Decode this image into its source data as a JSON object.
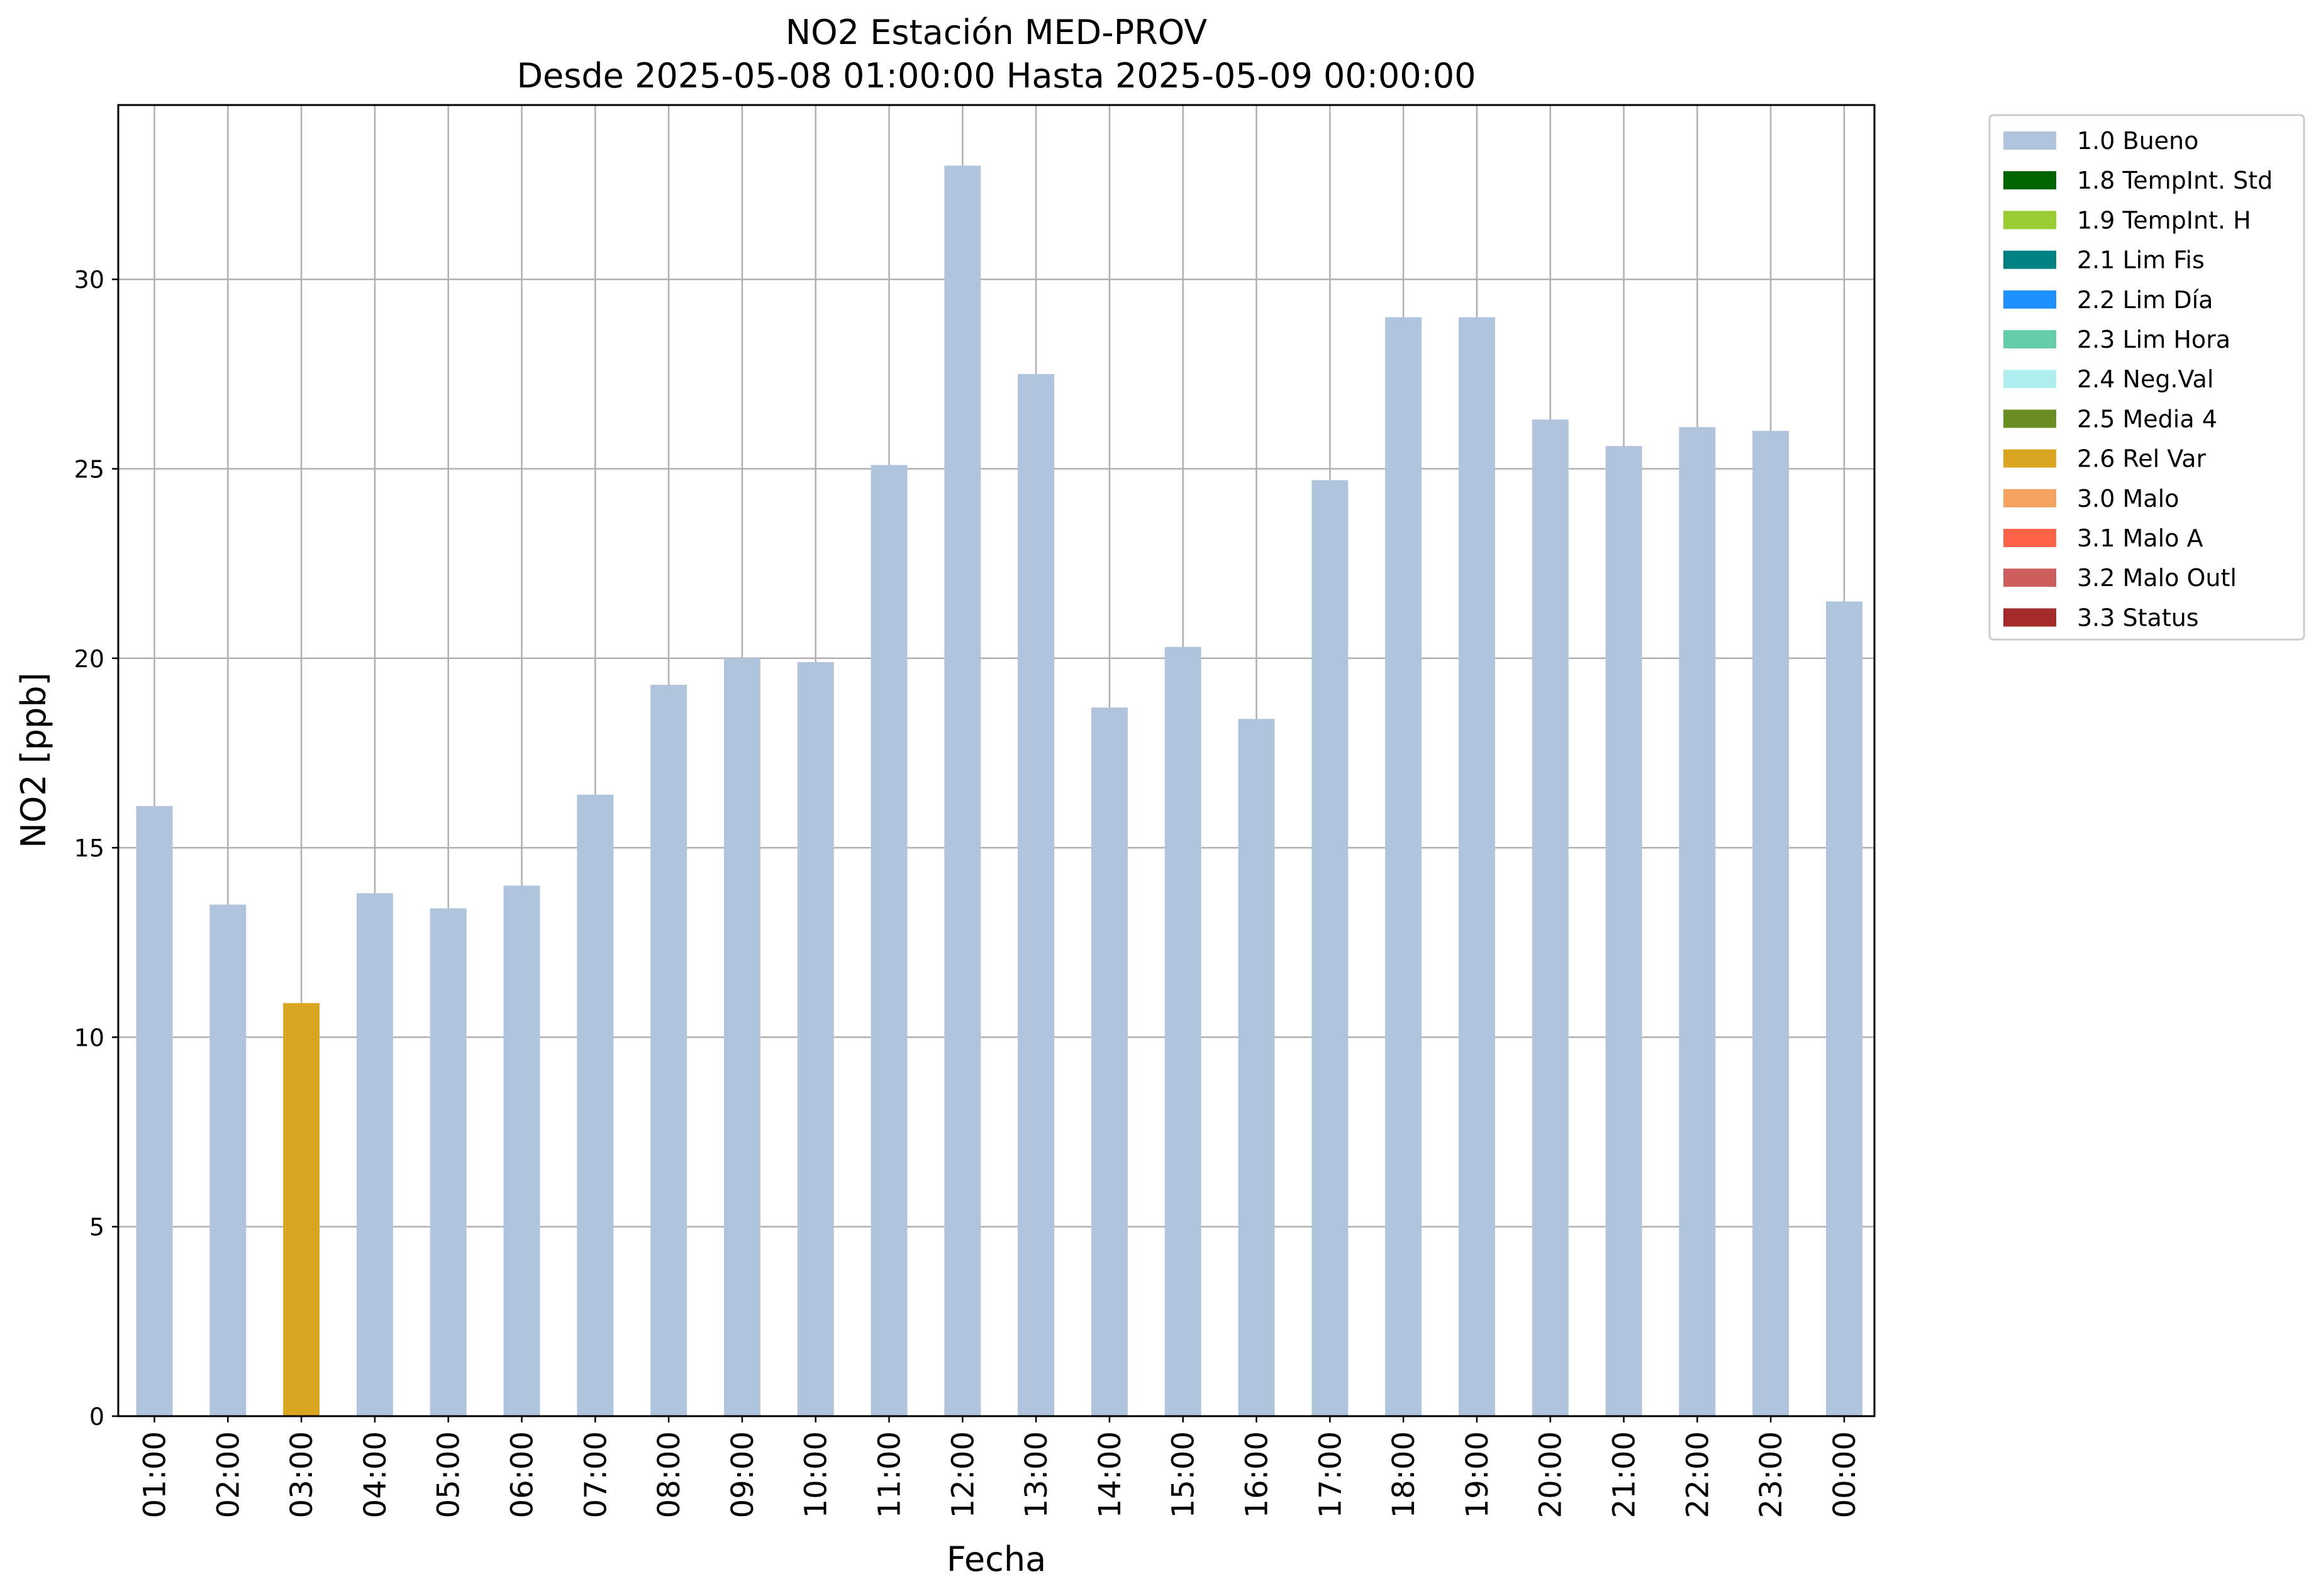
{
  "chart_data": {
    "type": "bar",
    "title": "NO2 Estación MED-PROV",
    "subtitle": "Desde 2025-05-08 01:00:00 Hasta 2025-05-09 00:00:00",
    "xlabel": "Fecha",
    "ylabel": "NO2 [ppb]",
    "ylim": [
      0,
      34.6
    ],
    "yticks": [
      0,
      5,
      10,
      15,
      20,
      25,
      30
    ],
    "grid": true,
    "legend_position": "outside top-right",
    "categories": [
      "01:00",
      "02:00",
      "03:00",
      "04:00",
      "05:00",
      "06:00",
      "07:00",
      "08:00",
      "09:00",
      "10:00",
      "11:00",
      "12:00",
      "13:00",
      "14:00",
      "15:00",
      "16:00",
      "17:00",
      "18:00",
      "19:00",
      "20:00",
      "21:00",
      "22:00",
      "23:00",
      "00:00"
    ],
    "values": [
      16.1,
      13.5,
      10.9,
      13.8,
      13.4,
      14.0,
      16.4,
      19.3,
      20.0,
      19.9,
      25.1,
      33.0,
      27.5,
      18.7,
      20.3,
      18.4,
      24.7,
      29.0,
      29.0,
      26.3,
      25.6,
      26.1,
      26.0,
      21.5
    ],
    "bar_flags": [
      "1.0 Bueno",
      "1.0 Bueno",
      "2.6 Rel Var",
      "1.0 Bueno",
      "1.0 Bueno",
      "1.0 Bueno",
      "1.0 Bueno",
      "1.0 Bueno",
      "1.0 Bueno",
      "1.0 Bueno",
      "1.0 Bueno",
      "1.0 Bueno",
      "1.0 Bueno",
      "1.0 Bueno",
      "1.0 Bueno",
      "1.0 Bueno",
      "1.0 Bueno",
      "1.0 Bueno",
      "1.0 Bueno",
      "1.0 Bueno",
      "1.0 Bueno",
      "1.0 Bueno",
      "1.0 Bueno",
      "1.0 Bueno"
    ],
    "legend": [
      {
        "label": "1.0 Bueno",
        "color": "#b0c4de"
      },
      {
        "label": "1.8 TempInt. Std",
        "color": "#006400"
      },
      {
        "label": "1.9 TempInt. H",
        "color": "#9acd32"
      },
      {
        "label": "2.1 Lim Fis",
        "color": "#008080"
      },
      {
        "label": "2.2 Lim Día",
        "color": "#1e90ff"
      },
      {
        "label": "2.3 Lim Hora",
        "color": "#66cdaa"
      },
      {
        "label": "2.4 Neg.Val",
        "color": "#afeeee"
      },
      {
        "label": "2.5 Media 4",
        "color": "#6b8e23"
      },
      {
        "label": "2.6 Rel Var",
        "color": "#daa520"
      },
      {
        "label": "3.0 Malo",
        "color": "#f4a460"
      },
      {
        "label": "3.1 Malo A",
        "color": "#ff6347"
      },
      {
        "label": "3.2 Malo Outl",
        "color": "#cd5c5c"
      },
      {
        "label": "3.3 Status",
        "color": "#a52a2a"
      }
    ]
  }
}
